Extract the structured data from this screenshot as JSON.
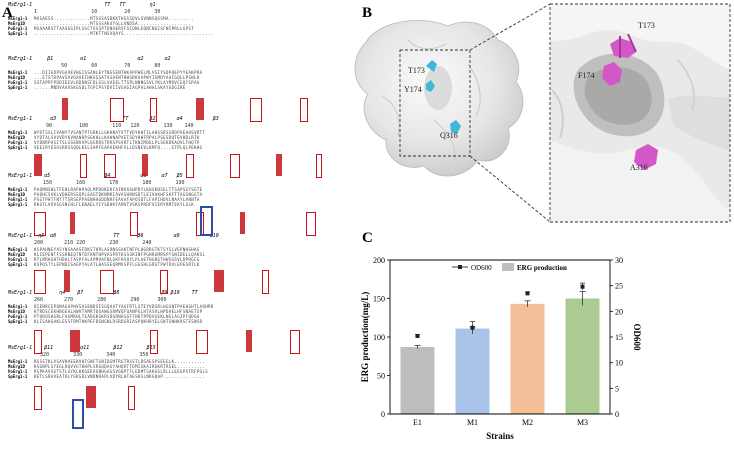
{
  "panels": {
    "a": "A",
    "b": "B",
    "c": "C"
  },
  "alignment": {
    "sequences": [
      "MsErg1-1",
      "MsErg1D",
      "PoErg1-1",
      "SpErg1-1"
    ],
    "header_label": "MsErg1-1",
    "rulers": [
      {
        "secondary": "                      TT   TT        η1",
        "numbers": "1                  10         20        30"
      },
      {
        "secondary": "   β1         α1                 α2       α2",
        "numbers": "         50        60         70        80"
      },
      {
        "secondary": "    α3                      TT       β2       α4          β3",
        "numbers": "    90         100        110   120        130    140"
      },
      {
        "secondary": "  α5                  β4          α6     α7   β5",
        "numbers": "   150        160        170        180        190"
      },
      {
        "secondary": "η3  α8                   TT      β6          α9          α10",
        "numbers": "200       210 220        230        240"
      },
      {
        "secondary": "       η4    β7          β8              β9 β10    TT",
        "numbers": "260       270        280        290      300"
      },
      {
        "secondary": "  β11         α11        β12        β13",
        "numbers": "  320        330        340        350"
      }
    ],
    "seq_blocks": [
      [
        "MVSAESS.............MTSSSASDKKTHGSSDVLGVNNSQGSMA.........",
        "....................MTSSSAK4YGLLVNDSA...................",
        "MSAAARSTTAASGGIPLSSCTVSSPTDNAERSFSCQNLEQNCNGCSFNIPRLLGPST",
        "....................MTKTTNSVQAYS................................"
      ],
      [
        "...DIIEDPVGAVEVHGISSANLEYTNGSENTHKAPPWELMLVSIYSDPQEPYYEAKPRA",
        "...ETSTDPAVSAVGAVEIHKGSSATASAENTHWSRKAAPWYISMDYAAIGQLLPSNLR",
        "SSTAPPFPDDIEEVLRDDNSFDLGSLVAEELTTSPLNNNGSVLYKLAYMDVCGQYSPAA",
        "......MNDVAAVSKGSDLTGPIPSYDVIIVGAGIAGPALAHALSKAYGDGIRE"
      ],
      [
        "WYDTSSLIVANYTVSANTPTGRKLLGKHNATVTTVDYHHTILAHSSRSSRDPAEAHSVRTT",
        "VYDTALSVVVDYKVNANRPSGKHLLKAHNAPVETSDYHHFRPALPSESDQTEVHDLRIK",
        "VYDNRPASITSLGSENVVPLQGRRSTRRSPSVRTLTKNIMDELPLSEKDKAQVLFHQTP",
        "VEEIRYESGSRRSSQQLKELSHPFEAPAEKHFVLLDSNEVLKMFQ....GTPLQLPEKHG"
      ],
      [
        "PAQMNSWLTFEHLRAPHPAQLMPDDKEKFAINVASHPDYLKHSKHSELTTSAPSSYSGTE",
        "PAQHCSVKLVDHERSSQPLEAGTDKNMRIAVASHRNSDTLEIVAKHFSKFTTAGSNGGTA",
        "PSGTPHTFNTTTSRSEPPAENHAGDDNRFEAVAFAPQSDTLFAPIHDVLNAAYLANNTA",
        "RKGTLVVVSGSNCHLFLENAELYIYSDHKFAMVTVSKGPRDFVIERYRMTEKYLSLK"
      ],
      [
        "KSPAHNEYASYNSAAASFDKSTHPLASRNSSAKTNFPLHGRRGTKTSYSLVEPNHSHAS",
        "KLIEPENTFSSRNEQTNTDFKNTHPVASPRTKSSGKINFPGHRGMRSPYSNIDELLQAKSL",
        "RTLMRHSHTHDALTASPFALAPMVAFNLGKFHSQYLPLAETHGRGTHWSGSVLDPRGCG",
        "KSPQSTYLEPNDISAEPYALATLHASSEQRMVSPFLGGSHLGRGTPWTRVLEPEGRTLK"
      ],
      [
        "KIENRCEPQNAGAPHVSASENDSISGQAATYAGFRTLSTEYVDGRLHGSNTPAEHSHTLAQHRR",
        "KTRDSCEKHNGEALHWVTAMRTQSAWGSRMVQFQANPGLHTASVLHPDAELHFSNAETSP",
        "PTQRQSHGRLFAGMKHLTEADGKGKRSDGRNASGFTHKTPPDVGEKLNGLAGIPFQDGA",
        "KLISAHGAKLESSFRMTHKPEFDGNGNLRSRDGRIASPQKHRYELGNTSNHKRSTESNSR"
      ],
      [
        "RGSSTKLVSAVHAEEKVHTGNFTGNIDGMTRGTRSSTLDGAESPSEEGLK...........",
        "KSGNPLSYEGLRQVVGTKHPLSRGQDAGYAHQRTTDMIGKAIRGKRTRSEL..........",
        "RSPKAVSGTSTLGYKLKKGEEAGNHGAGSVGQPTFLEDMTGAKGGLRLLLEEGPSTRFPGLS",
        "KETLSRAVEATKLYGKGDLVNDNRAPLVDYRLHTAESKSLNKGQAP..............."
      ]
    ]
  },
  "structure": {
    "residues": [
      "T173",
      "Y174",
      "Q316"
    ],
    "zoom_residues": [
      "T173",
      "F174",
      "A316"
    ]
  },
  "chart_data": {
    "type": "bar",
    "categories": [
      "E1",
      "M1",
      "M2",
      "M3"
    ],
    "values": [
      87,
      111,
      143,
      150
    ],
    "errors": [
      2,
      2,
      4,
      9
    ],
    "bar_colors": [
      "#bdbdbd",
      "#a9c4e8",
      "#f3bf98",
      "#abcb92"
    ],
    "line": {
      "values": [
        15.2,
        16.8,
        23.5,
        24.8
      ],
      "errors": [
        0.3,
        1.2,
        0.3,
        0.7
      ]
    },
    "legend": [
      "OD600",
      "ERG production"
    ],
    "xlabel": "Strains",
    "ylabel": "ERG production(mg/L)",
    "y2label": "OD600",
    "ylim": [
      0,
      200
    ],
    "y2lim": [
      0,
      30
    ],
    "yticks": [
      "0",
      "50",
      "100",
      "150",
      "200"
    ],
    "y2ticks": [
      "0",
      "5",
      "10",
      "15",
      "20",
      "25",
      "30"
    ],
    "legend_position": "top-center"
  }
}
